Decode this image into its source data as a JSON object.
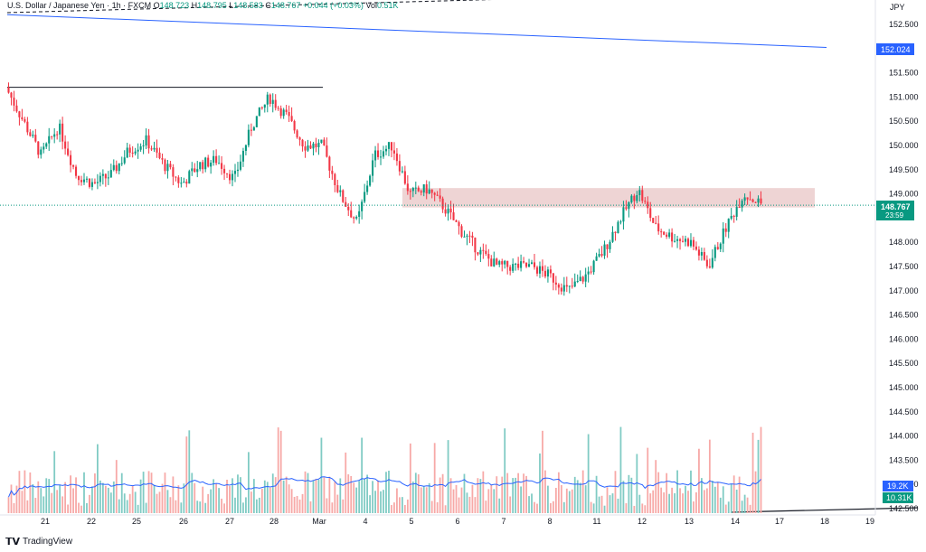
{
  "header": {
    "symbol": "U.S. Dollar / Japanese Yen · 1h · FXCM",
    "o_label": "O",
    "o": "148.723",
    "h_label": "H",
    "h": "148.795",
    "l_label": "L",
    "l": "148.583",
    "c_label": "C",
    "c": "148.767",
    "chg": "+0.044 (+0.03%)",
    "vol_label": "Vol",
    "vol": "0.51K"
  },
  "brand": {
    "logo_text": "TradingView"
  },
  "chart_data": {
    "type": "candlestick",
    "currency": "JPY",
    "ylim": [
      142.5,
      153.0
    ],
    "y_ticks": [
      "152.500",
      "151.500",
      "151.000",
      "150.500",
      "150.000",
      "149.500",
      "149.000",
      "148.000",
      "147.500",
      "147.000",
      "146.500",
      "146.000",
      "145.500",
      "145.000",
      "144.500",
      "144.000",
      "143.500",
      "143.000",
      "142.500"
    ],
    "y_tick_values": [
      152.5,
      151.5,
      151.0,
      150.5,
      150.0,
      149.5,
      149.0,
      148.0,
      147.5,
      147.0,
      146.5,
      146.0,
      145.5,
      145.0,
      144.5,
      144.0,
      143.5,
      143.0,
      142.5
    ],
    "x_ticks": [
      "21",
      "22",
      "25",
      "26",
      "27",
      "28",
      "Mar",
      "4",
      "5",
      "6",
      "7",
      "8",
      "11",
      "12",
      "13",
      "14",
      "17",
      "18",
      "19"
    ],
    "price_path": [
      [
        0,
        151.2
      ],
      [
        1,
        150.5
      ],
      [
        2,
        149.8
      ],
      [
        3,
        150.4
      ],
      [
        4,
        149.4
      ],
      [
        5,
        149.2
      ],
      [
        6,
        149.4
      ],
      [
        7,
        149.9
      ],
      [
        8,
        150.1
      ],
      [
        9,
        149.6
      ],
      [
        10,
        149.2
      ],
      [
        11,
        149.6
      ],
      [
        12,
        149.7
      ],
      [
        13,
        149.3
      ],
      [
        14,
        150.4
      ],
      [
        15,
        151.0
      ],
      [
        16,
        150.6
      ],
      [
        17,
        150.0
      ],
      [
        18,
        150.0
      ],
      [
        19,
        149.0
      ],
      [
        20,
        148.4
      ],
      [
        21,
        149.8
      ],
      [
        22,
        150.0
      ],
      [
        23,
        149.0
      ],
      [
        24,
        149.1
      ],
      [
        25,
        148.7
      ],
      [
        26,
        148.2
      ],
      [
        27,
        147.8
      ],
      [
        28,
        147.5
      ],
      [
        29,
        147.5
      ],
      [
        30,
        147.5
      ],
      [
        31,
        147.3
      ],
      [
        32,
        147.0
      ],
      [
        33,
        147.3
      ],
      [
        34,
        147.8
      ],
      [
        35,
        148.5
      ],
      [
        36,
        149.1
      ],
      [
        37,
        148.3
      ],
      [
        38,
        148.1
      ],
      [
        39,
        148.0
      ],
      [
        40,
        147.5
      ],
      [
        41,
        148.3
      ],
      [
        42,
        149.0
      ],
      [
        43,
        148.8
      ]
    ],
    "last_price": "148.767",
    "countdown": "23:59",
    "resistance_line_label": "152.024",
    "resistance_line": [
      152.7,
      152.024
    ],
    "horizontal_line_price": 151.2,
    "zone": [
      148.72,
      149.12
    ],
    "volume_ma_label": "19.2K",
    "volume_label": "10.31K",
    "colors": {
      "up": "#089981",
      "down": "#f23645",
      "up_vol": "#80cbc4",
      "down_vol": "#f7a9a7",
      "zone": "#e8c6c6",
      "trend": "#2962ff",
      "label_bg": "#2962ff",
      "ma": "#2962ff"
    }
  }
}
